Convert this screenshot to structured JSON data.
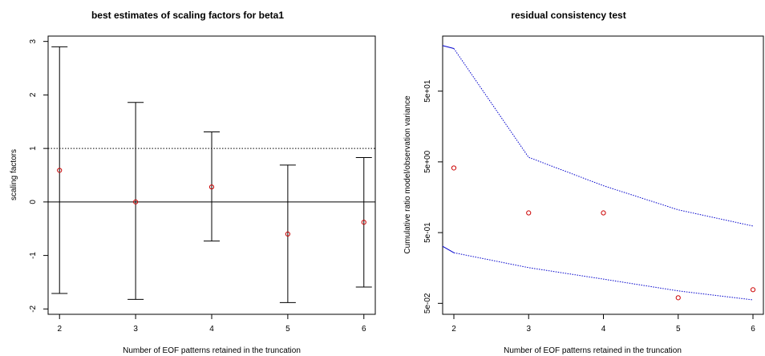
{
  "chart_data": [
    {
      "type": "errorbar",
      "title": "best estimates of scaling factors for beta1",
      "xlabel": "Number of EOF patterns retained in the truncation",
      "ylabel": "scaling factors",
      "xlim": [
        1.85,
        6.15
      ],
      "ylim": [
        -2.1,
        3.1
      ],
      "xticks": [
        "2",
        "3",
        "4",
        "5",
        "6"
      ],
      "yticks": [
        "-2",
        "-1",
        "0",
        "1",
        "2",
        "3"
      ],
      "x": [
        2,
        3,
        4,
        5,
        6
      ],
      "estimate": [
        0.59,
        0.0,
        0.28,
        -0.6,
        -0.38
      ],
      "lower": [
        -1.71,
        -1.82,
        -0.73,
        -1.88,
        -1.59
      ],
      "upper": [
        2.9,
        1.86,
        1.31,
        0.69,
        0.83
      ],
      "reference_lines": [
        {
          "y": 0,
          "style": "solid"
        },
        {
          "y": 1,
          "style": "dotted"
        }
      ],
      "grid": false,
      "colors": {
        "points": "#cc0000",
        "bars": "#000000",
        "axes": "#000000"
      }
    },
    {
      "type": "scatter",
      "title": "residual consistency test",
      "xlabel": "Number of EOF patterns retained in the truncation",
      "ylabel": "Cumulative ratio model/observation variance",
      "xlim": [
        1.85,
        6.15
      ],
      "ylim": [
        0.035,
        300
      ],
      "yscale": "log",
      "xticks": [
        "2",
        "3",
        "4",
        "5",
        "6"
      ],
      "yticks": [
        "5e-02",
        "5e-01",
        "5e+00",
        "5e+01"
      ],
      "ytick_values": [
        0.05,
        0.5,
        5,
        50
      ],
      "x": [
        2,
        3,
        4,
        5,
        6
      ],
      "values": [
        4.1,
        0.95,
        0.95,
        0.06,
        0.078
      ],
      "series": [
        {
          "x": [
            1.85,
            2,
            3,
            4,
            5,
            6
          ],
          "values": [
            220,
            200,
            5.8,
            2.3,
            1.05,
            0.62
          ],
          "style": "dotted"
        },
        {
          "x": [
            1.85,
            2,
            3,
            4,
            5,
            6
          ],
          "values": [
            0.32,
            0.26,
            0.16,
            0.11,
            0.075,
            0.056
          ],
          "style": "dotted"
        }
      ],
      "grid": false,
      "colors": {
        "points": "#cc0000",
        "lines": "#0000cc",
        "axes": "#000000"
      }
    }
  ]
}
